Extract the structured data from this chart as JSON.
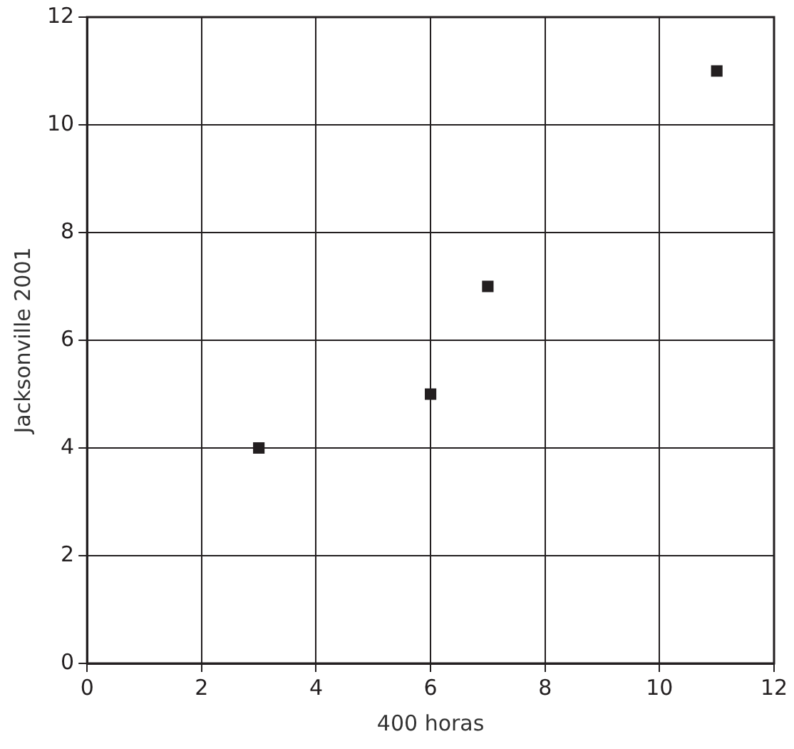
{
  "chart_data": {
    "type": "scatter",
    "xlabel": "400 horas",
    "ylabel": "Jacksonville 2001",
    "x": [
      3,
      6,
      7,
      11
    ],
    "values": [
      4,
      5,
      7,
      11
    ],
    "color": "#231f20",
    "marker": "square",
    "xlim": [
      0,
      12
    ],
    "xticks": [
      0,
      2,
      4,
      6,
      8,
      10,
      12
    ],
    "ylim": [
      0,
      12
    ],
    "yticks": [
      0,
      2,
      4,
      6,
      8,
      10,
      12
    ],
    "grid": true,
    "legend": false
  }
}
